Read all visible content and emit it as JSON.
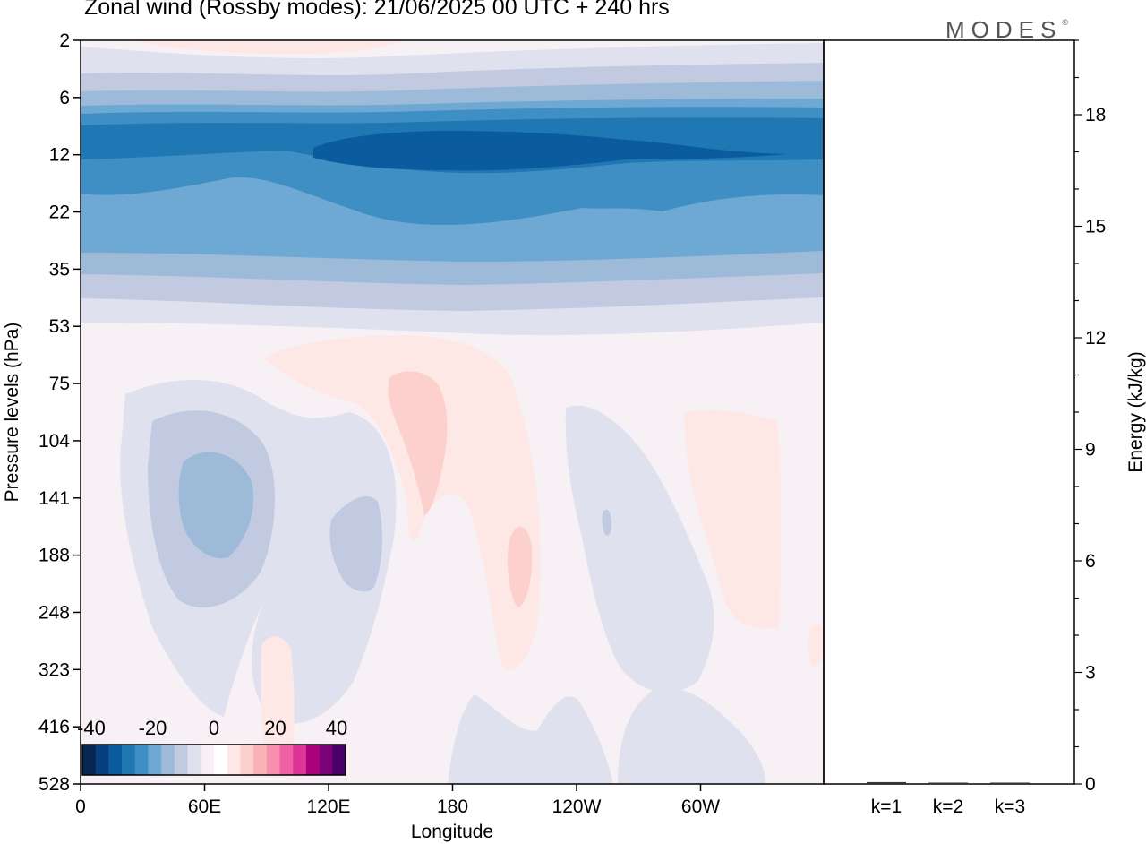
{
  "title": "Zonal wind (Rossby modes):  21/06/2025  00 UTC  + 240 hrs",
  "logo": "MODES",
  "logo_mark": "©",
  "chart_data": [
    {
      "type": "heatmap",
      "title": "Zonal wind (Rossby modes):  21/06/2025  00 UTC  + 240 hrs",
      "xlabel": "Longitude",
      "ylabel": "Pressure levels (hPa)",
      "x_ticks": [
        "0",
        "60E",
        "120E",
        "180",
        "120W",
        "60W"
      ],
      "y_ticks": [
        "2",
        "6",
        "12",
        "22",
        "35",
        "53",
        "75",
        "104",
        "141",
        "188",
        "248",
        "323",
        "416",
        "528"
      ],
      "y_scale": "log, inverted (pressure)",
      "colorbar": {
        "ticks": [
          "-40",
          "-20",
          "0",
          "20",
          "40"
        ],
        "range": [
          -40,
          40
        ],
        "colors": [
          "#08264f",
          "#0a3f7f",
          "#0a5c9e",
          "#1f78b4",
          "#3f8fc5",
          "#6ea9d3",
          "#9ebad9",
          "#c2cae2",
          "#e0e1ef",
          "#f7f1f5",
          "#ffffff",
          "#fee8e5",
          "#fcd0cc",
          "#fab3b5",
          "#f78fb0",
          "#f061a4",
          "#dd3497",
          "#ae017e",
          "#7a0177",
          "#49006a"
        ]
      },
      "series": [
        {
          "level": "2",
          "values_zonal": [
            2,
            1,
            2,
            1,
            0,
            -2
          ]
        },
        {
          "level": "6",
          "values_zonal": [
            -14,
            -14,
            -13,
            -14,
            -14,
            -15
          ]
        },
        {
          "level": "12",
          "values_zonal": [
            -28,
            -30,
            -34,
            -36,
            -34,
            -31
          ]
        },
        {
          "level": "22",
          "values_zonal": [
            -22,
            -24,
            -26,
            -28,
            -28,
            -26
          ]
        },
        {
          "level": "35",
          "values_zonal": [
            -10,
            -10,
            -11,
            -12,
            -12,
            -11
          ]
        },
        {
          "level": "53",
          "values_zonal": [
            -2,
            -1,
            -1,
            0,
            0,
            -1
          ]
        },
        {
          "level": "104",
          "values_zonal": [
            -6,
            -12,
            -4,
            4,
            -3,
            2
          ]
        },
        {
          "level": "188",
          "values_zonal": [
            -4,
            -10,
            -6,
            6,
            -3,
            2
          ]
        },
        {
          "level": "416",
          "values_zonal": [
            -2,
            -3,
            0,
            -1,
            -2,
            -1
          ]
        }
      ]
    },
    {
      "type": "bar",
      "categories": [
        "k=1",
        "k=2",
        "k=3"
      ],
      "values": [
        0.05,
        0.03,
        0.01
      ],
      "ylabel": "Energy (kJ/kg)",
      "y_ticks": [
        "0",
        "3",
        "6",
        "9",
        "12",
        "15",
        "18"
      ],
      "ylim": [
        0,
        20
      ]
    }
  ]
}
